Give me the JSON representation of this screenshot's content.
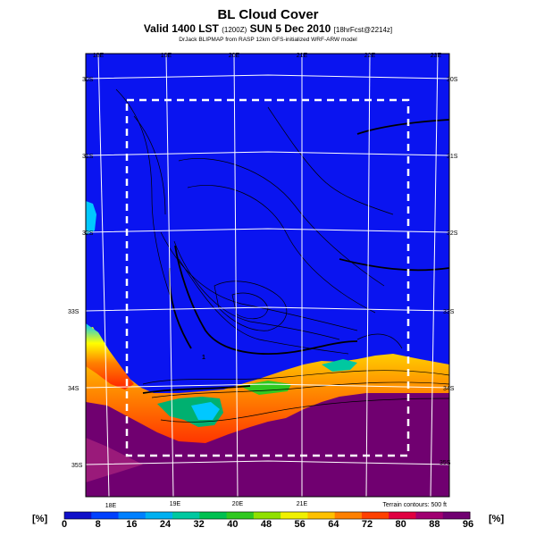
{
  "title": "BL Cloud Cover",
  "valid_line": "Valid 1400 LST",
  "valid_mid": "(1200Z)",
  "valid_date": "SUN 5 Dec 2010",
  "valid_fcst": "[18hrFcst@2214z]",
  "credit": "DrJack BLIPMAP from RASP 12km GFS-initialized WRF-ARW model",
  "terrain_note": "Terrain contours: 500 ft",
  "top_lon_labels": [
    "18E",
    "19E",
    "20E",
    "21E",
    "22E",
    "23E"
  ],
  "bottom_lon_labels": [
    "18E",
    "19E",
    "20E",
    "21E"
  ],
  "left_lat_labels": [
    "30S",
    "31S",
    "32S",
    "33S",
    "34S",
    "35S"
  ],
  "right_lat_labels": [
    "30S",
    "31S",
    "32S",
    "33S",
    "34S",
    "35S"
  ],
  "contour_label": "1",
  "colorbar": {
    "unit_left": "[%]",
    "unit_right": "[%]",
    "ticks": [
      "0",
      "8",
      "16",
      "24",
      "32",
      "40",
      "48",
      "56",
      "64",
      "72",
      "80",
      "88",
      "96"
    ],
    "colors": [
      "#1010c8",
      "#0040ff",
      "#0080ff",
      "#00b0f0",
      "#00c8a0",
      "#00c050",
      "#30c820",
      "#90e000",
      "#f0f000",
      "#ffc000",
      "#ff8000",
      "#ff4000",
      "#e00040",
      "#a00070",
      "#700070"
    ]
  },
  "colors": {
    "ocean_land_clear": "#0a14f0",
    "overcast": "#780078",
    "frame": "#ffffff"
  }
}
